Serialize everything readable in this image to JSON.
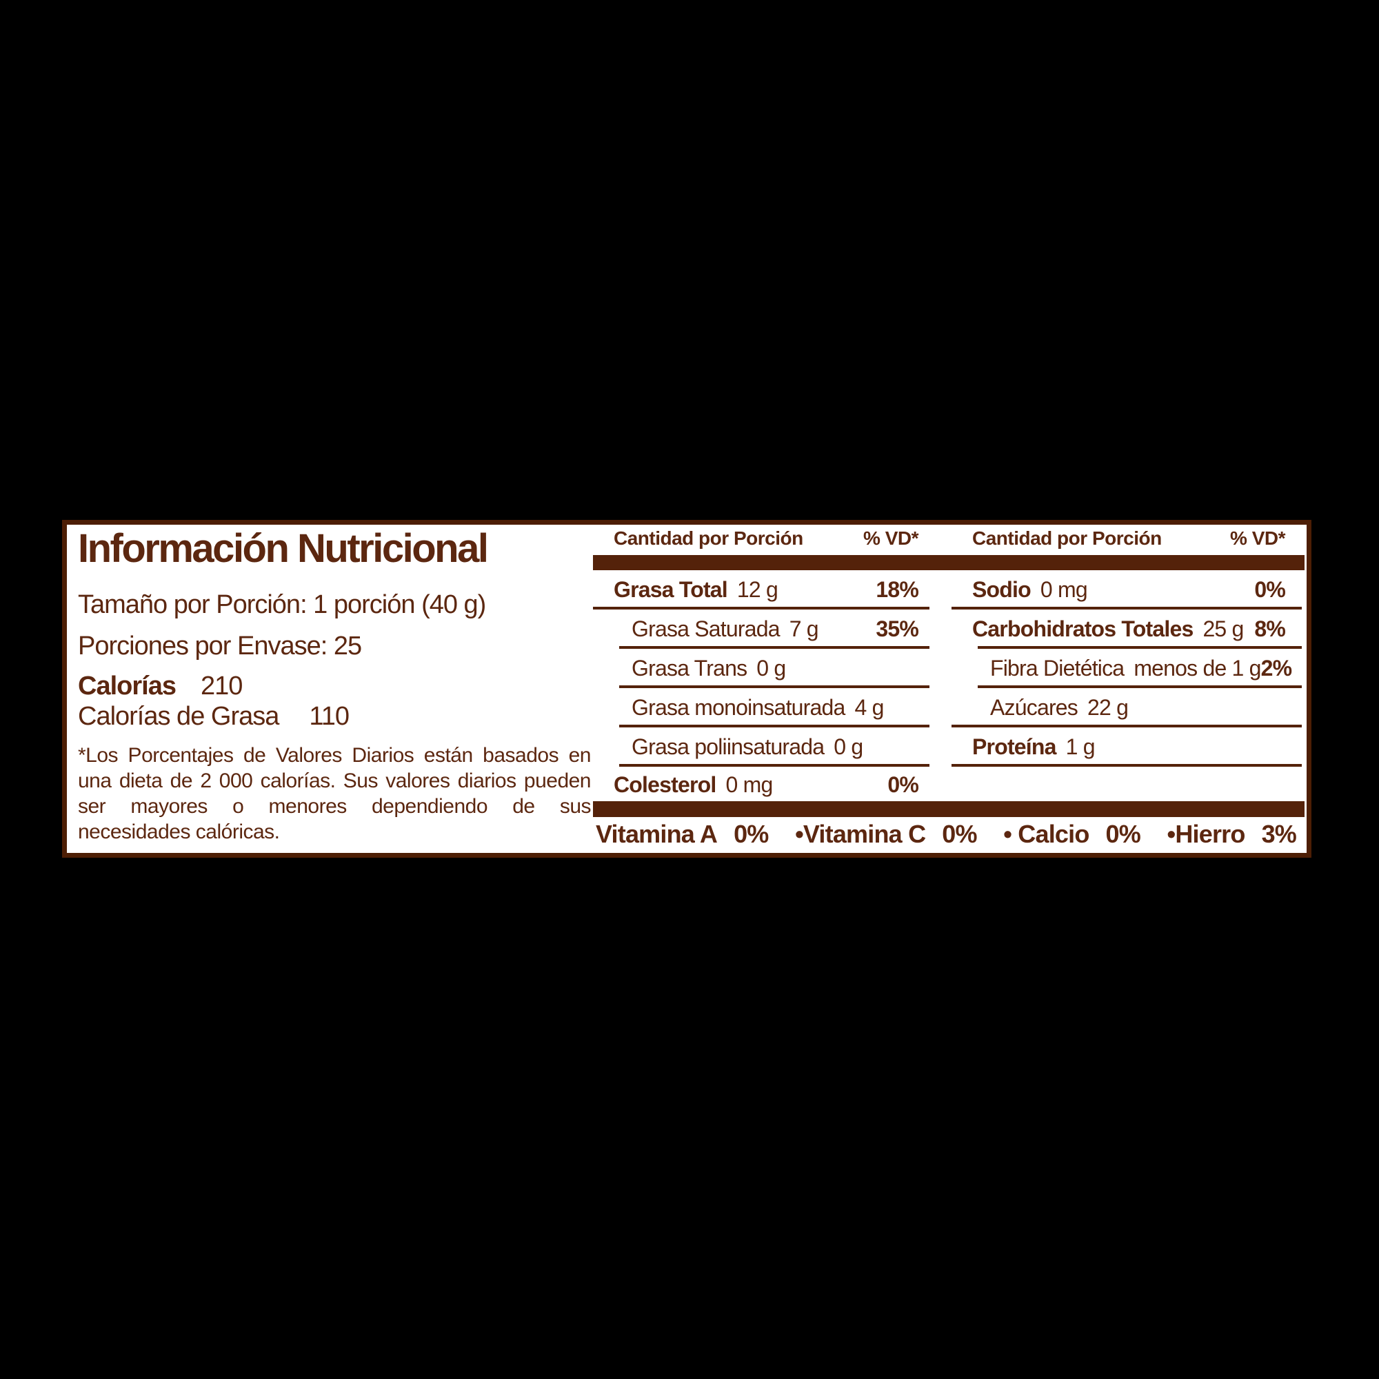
{
  "colors": {
    "page_background": "#000000",
    "panel_background": "#ffffff",
    "brown_text": "#5c2710",
    "brown_bar": "#54220a",
    "panel_border": "#4d1e05"
  },
  "label": {
    "title": "Información Nutricional",
    "serving_size": "Tamaño por Porción: 1 porción (40 g)",
    "servings_per_container": "Porciones por Envase: 25",
    "calories_label": "Calorías",
    "calories_value": "210",
    "calories_from_fat_label": "Calorías de Grasa",
    "calories_from_fat_value": "110",
    "footnote": "*Los Porcentajes de Valores Diarios están basados en una dieta de 2 000 calorías. Sus valores diarios pueden ser mayores o menores dependiendo de sus necesidades calóricas."
  },
  "table": {
    "amount_header": "Cantidad por Porción",
    "dv_header": "% VD*",
    "middle_rows": [
      {
        "label": "Grasa Total",
        "value": "12 g",
        "dv": "18%"
      },
      {
        "label": "Grasa Saturada",
        "value": "7 g",
        "dv": "35%"
      },
      {
        "label": "Grasa Trans",
        "value": "0 g",
        "dv": ""
      },
      {
        "label": "Grasa monoinsaturada",
        "value": "4 g",
        "dv": ""
      },
      {
        "label": "Grasa poliinsaturada",
        "value": "0 g",
        "dv": ""
      },
      {
        "label": "Colesterol",
        "value": "0 mg",
        "dv": "0%"
      }
    ],
    "right_rows": [
      {
        "label": "Sodio",
        "value": "0 mg",
        "dv": "0%"
      },
      {
        "label": "Carbohidratos Totales",
        "value": "25 g",
        "dv": "8%"
      },
      {
        "label": "Fibra Dietética",
        "value": "menos de 1 g",
        "dv": "2%"
      },
      {
        "label": "Azúcares",
        "value": "22 g",
        "dv": ""
      },
      {
        "label": "Proteína",
        "value": "1 g",
        "dv": ""
      }
    ]
  },
  "vitamins": [
    {
      "name": "Vitamina A",
      "value": "0%"
    },
    {
      "name": "•Vitamina C",
      "value": "0%"
    },
    {
      "name": "• Calcio",
      "value": "0%"
    },
    {
      "name": "•Hierro",
      "value": "3%"
    }
  ]
}
